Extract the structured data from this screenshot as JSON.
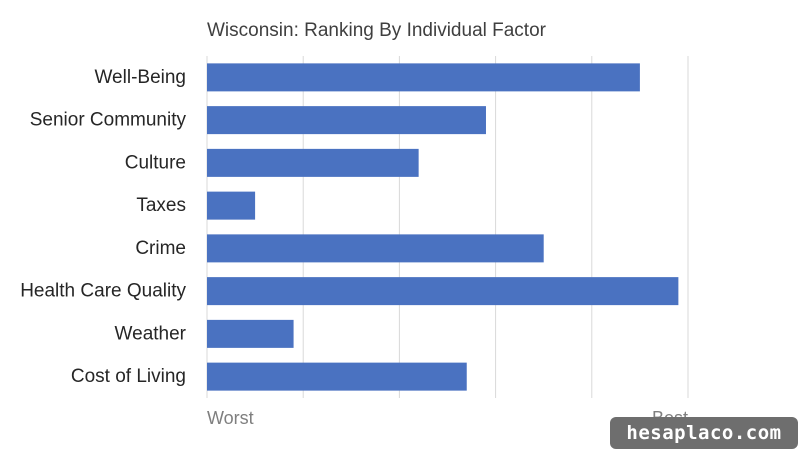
{
  "chart_data": {
    "type": "bar",
    "orientation": "horizontal",
    "title": "Wisconsin: Ranking By Individual Factor",
    "categories": [
      "Well-Being",
      "Senior Community",
      "Culture",
      "Taxes",
      "Crime",
      "Health Care Quality",
      "Weather",
      "Cost of Living"
    ],
    "values": [
      0.9,
      0.58,
      0.44,
      0.1,
      0.7,
      0.98,
      0.18,
      0.54
    ],
    "xlim": [
      0,
      1
    ],
    "x_tick_labels": [
      {
        "value": 0,
        "label": "Worst"
      },
      {
        "value": 1,
        "label": "Best"
      }
    ],
    "gridlines": [
      0,
      0.2,
      0.4,
      0.6,
      0.8,
      1.0
    ],
    "grid": true,
    "bar_color": "#4A72C1",
    "gridline_color": "#D9D9D9"
  },
  "watermark": "hesaplaco.com"
}
